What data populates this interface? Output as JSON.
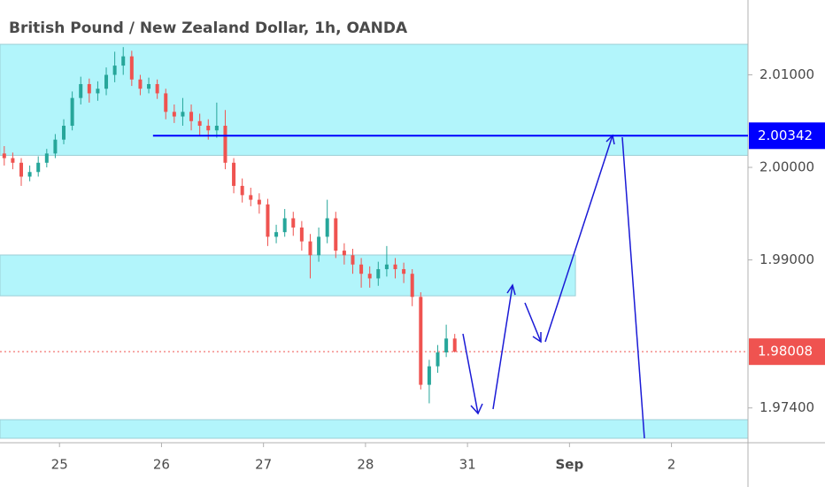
{
  "chart_data": {
    "type": "candlestick",
    "title": "British Pound / New Zealand Dollar, 1h, OANDA",
    "x": [
      1,
      3,
      5,
      7,
      9,
      11,
      13,
      15,
      17,
      19,
      21,
      23,
      25,
      27,
      29,
      31,
      33,
      35,
      37,
      39,
      41,
      43,
      45,
      47,
      49,
      51,
      53,
      55,
      57,
      59,
      61,
      63,
      65,
      67,
      69,
      71,
      73,
      75,
      77,
      79,
      81,
      83,
      85,
      87,
      89,
      91,
      93,
      95,
      97,
      99,
      101,
      103,
      105,
      107
    ],
    "open": [
      2.0015,
      2.001,
      2.0005,
      1.999,
      1.9995,
      2.0005,
      2.0015,
      2.003,
      2.0045,
      2.0075,
      2.009,
      2.008,
      2.0085,
      2.01,
      2.011,
      2.012,
      2.0095,
      2.0085,
      2.009,
      2.008,
      2.006,
      2.0055,
      2.006,
      2.005,
      2.0045,
      2.004,
      2.0045,
      2.0005,
      1.998,
      1.997,
      1.9965,
      1.996,
      1.9925,
      1.993,
      1.9945,
      1.9935,
      1.992,
      1.9905,
      1.9925,
      1.9945,
      1.991,
      1.9905,
      1.9895,
      1.9885,
      1.988,
      1.989,
      1.9895,
      1.989,
      1.9885,
      1.986,
      1.9765,
      1.9785,
      1.98,
      1.9815
    ],
    "high": [
      2.0023,
      2.0016,
      2.001,
      2.0002,
      2.0012,
      2.002,
      2.0036,
      2.0052,
      2.0082,
      2.0098,
      2.0096,
      2.0093,
      2.0108,
      2.0125,
      2.013,
      2.0126,
      2.01,
      2.0097,
      2.0095,
      2.0085,
      2.0068,
      2.0075,
      2.0068,
      2.0058,
      2.0052,
      2.007,
      2.0062,
      2.001,
      1.9988,
      1.9978,
      1.9972,
      1.9966,
      1.9938,
      1.9955,
      1.9952,
      1.9942,
      1.9928,
      1.9935,
      1.9965,
      1.9952,
      1.9918,
      1.9912,
      1.9902,
      1.9893,
      1.9898,
      1.9915,
      1.9902,
      1.9897,
      1.989,
      1.9865,
      1.9792,
      1.9808,
      1.983,
      1.982
    ],
    "low": [
      2.0002,
      1.9998,
      1.998,
      1.9985,
      1.999,
      2.0,
      2.001,
      2.0025,
      2.004,
      2.0068,
      2.007,
      2.0072,
      2.0078,
      2.0092,
      2.01,
      2.0088,
      2.0078,
      2.008,
      2.0074,
      2.0052,
      2.0048,
      2.0045,
      2.004,
      2.0035,
      2.003,
      2.0032,
      1.9998,
      1.9972,
      1.9962,
      1.9958,
      1.995,
      1.9915,
      1.9918,
      1.9925,
      1.9926,
      1.991,
      1.988,
      1.9898,
      1.9918,
      1.9902,
      1.9895,
      1.9885,
      1.987,
      1.987,
      1.9872,
      1.9882,
      1.988,
      1.9875,
      1.985,
      1.976,
      1.9745,
      1.9778,
      1.9795,
      1.98
    ],
    "close": [
      2.001,
      2.0005,
      1.999,
      1.9995,
      2.0005,
      2.0015,
      2.003,
      2.0045,
      2.0075,
      2.009,
      2.008,
      2.0085,
      2.01,
      2.011,
      2.012,
      2.0095,
      2.0085,
      2.009,
      2.008,
      2.006,
      2.0055,
      2.006,
      2.005,
      2.0045,
      2.004,
      2.0045,
      2.0005,
      1.998,
      1.997,
      1.9965,
      1.996,
      1.9925,
      1.993,
      1.9945,
      1.9935,
      1.992,
      1.9905,
      1.9925,
      1.9945,
      1.991,
      1.9905,
      1.9895,
      1.9885,
      1.988,
      1.989,
      1.9895,
      1.989,
      1.9885,
      1.986,
      1.9765,
      1.9785,
      1.98,
      1.9815,
      1.98008
    ],
    "up_color": "#26a69a",
    "down_color": "#ef5350",
    "xlim": [
      0,
      176
    ],
    "xticks": [
      {
        "value": 14,
        "label": "25"
      },
      {
        "value": 38,
        "label": "26"
      },
      {
        "value": 62,
        "label": "27"
      },
      {
        "value": 86,
        "label": "28"
      },
      {
        "value": 110,
        "label": "31"
      },
      {
        "value": 134,
        "label": "Sep"
      },
      {
        "value": 158,
        "label": "2"
      }
    ],
    "ylim": [
      1.97024,
      2.01809
    ],
    "yticks": [
      {
        "value": 2.01,
        "label": "2.01000"
      },
      {
        "value": 2.0,
        "label": "2.00000"
      },
      {
        "value": 1.99,
        "label": "1.99000"
      },
      {
        "value": 1.974,
        "label": "1.97400"
      }
    ],
    "grid": false,
    "zones": [
      {
        "ylim": [
          2.0013,
          2.0133
        ],
        "xlim": [
          0,
          176
        ]
      },
      {
        "ylim": [
          1.98612,
          1.99053
        ],
        "xlim": [
          0,
          135.4
        ]
      },
      {
        "ylim": [
          1.97072,
          1.97273
        ],
        "xlim": [
          0,
          176
        ]
      }
    ],
    "zone_color": "#b2f5fb",
    "level": {
      "value": 2.00342,
      "x_start": 36,
      "color": "#0000ff"
    },
    "last_price": {
      "value": 1.98008,
      "color": "#ef5350"
    }
  }
}
